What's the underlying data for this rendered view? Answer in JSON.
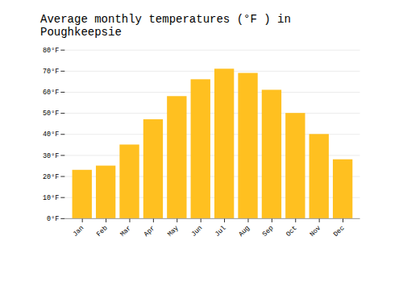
{
  "chart_data": {
    "type": "bar",
    "title": "Average monthly temperatures (°F ) in Poughkeepsie",
    "categories": [
      "Jan",
      "Feb",
      "Mar",
      "Apr",
      "May",
      "Jun",
      "Jul",
      "Aug",
      "Sep",
      "Oct",
      "Nov",
      "Dec"
    ],
    "values": [
      23,
      25,
      35,
      47,
      58,
      66,
      71,
      69,
      61,
      50,
      40,
      28
    ],
    "color": "#FFC020",
    "ylim": [
      0,
      80
    ],
    "yticks": [
      {
        "value": 0,
        "label": "0°F"
      },
      {
        "value": 10,
        "label": "10°F"
      },
      {
        "value": 20,
        "label": "20°F"
      },
      {
        "value": 30,
        "label": "30°F"
      },
      {
        "value": 40,
        "label": "40°F"
      },
      {
        "value": 50,
        "label": "50°F"
      },
      {
        "value": 60,
        "label": "60°F"
      },
      {
        "value": 70,
        "label": "70°F"
      },
      {
        "value": 80,
        "label": "80°F"
      }
    ],
    "grid": true
  }
}
